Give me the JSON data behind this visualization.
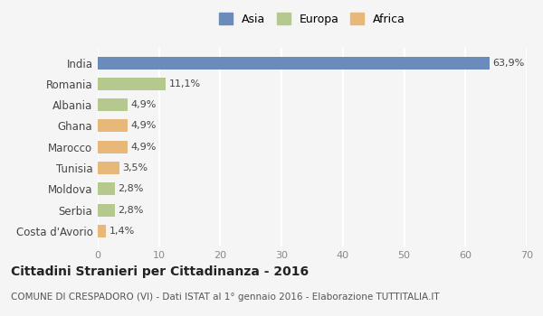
{
  "countries": [
    "India",
    "Romania",
    "Albania",
    "Ghana",
    "Marocco",
    "Tunisia",
    "Moldova",
    "Serbia",
    "Costa d'Avorio"
  ],
  "values": [
    63.9,
    11.1,
    4.9,
    4.9,
    4.9,
    3.5,
    2.8,
    2.8,
    1.4
  ],
  "labels": [
    "63,9%",
    "11,1%",
    "4,9%",
    "4,9%",
    "4,9%",
    "3,5%",
    "2,8%",
    "2,8%",
    "1,4%"
  ],
  "continents": [
    "Asia",
    "Europa",
    "Europa",
    "Africa",
    "Africa",
    "Africa",
    "Europa",
    "Europa",
    "Africa"
  ],
  "colors": {
    "Asia": "#6b8cba",
    "Europa": "#b5c98e",
    "Africa": "#e8b87a"
  },
  "legend_order": [
    "Asia",
    "Europa",
    "Africa"
  ],
  "xlim": [
    0,
    70
  ],
  "xticks": [
    0,
    10,
    20,
    30,
    40,
    50,
    60,
    70
  ],
  "title": "Cittadini Stranieri per Cittadinanza - 2016",
  "subtitle": "COMUNE DI CRESPADORO (VI) - Dati ISTAT al 1° gennaio 2016 - Elaborazione TUTTITALIA.IT",
  "bg_color": "#f5f5f5",
  "grid_color": "#ffffff",
  "bar_height": 0.6
}
